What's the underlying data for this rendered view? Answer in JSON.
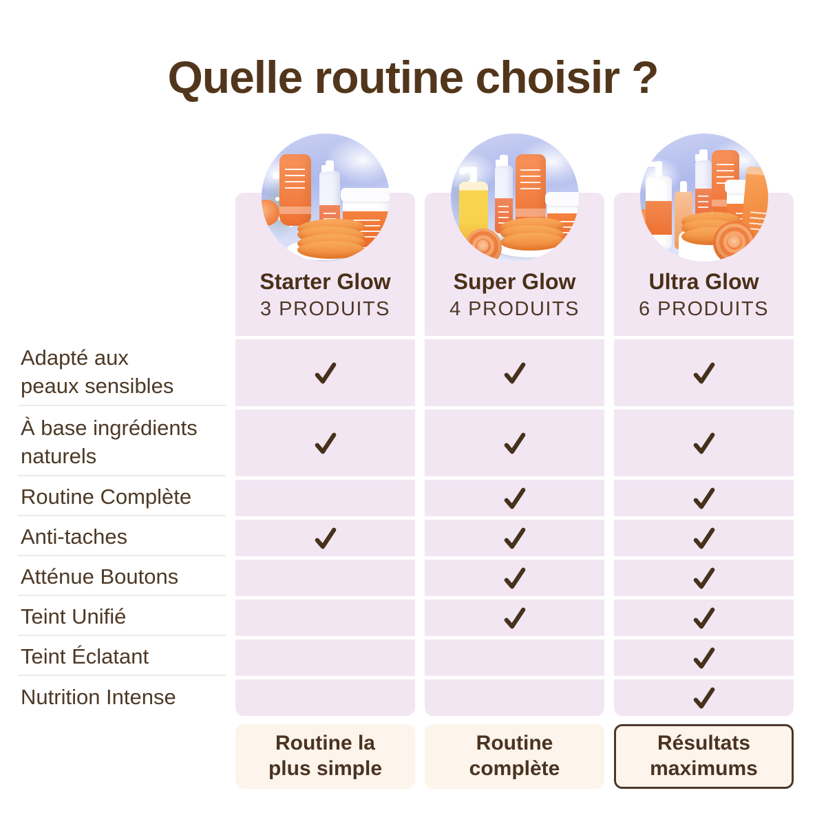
{
  "title": "Quelle routine choisir ?",
  "columns": [
    {
      "name": "Starter Glow",
      "products": "3 PRODUITS",
      "photo": "starter-glow-products-photo",
      "footer": "Routine la\nplus simple",
      "footer_highlighted": false
    },
    {
      "name": "Super Glow",
      "products": "4 PRODUITS",
      "photo": "super-glow-products-photo",
      "footer": "Routine\ncomplète",
      "footer_highlighted": false
    },
    {
      "name": "Ultra Glow",
      "products": "6 PRODUITS",
      "photo": "ultra-glow-products-photo",
      "footer": "Résultats\nmaximums",
      "footer_highlighted": true
    }
  ],
  "features": [
    {
      "label": "Adapté aux\npeaux sensibles",
      "checks": [
        true,
        true,
        true
      ]
    },
    {
      "label": "À base ingrédients\nnaturels",
      "checks": [
        true,
        true,
        true
      ]
    },
    {
      "label": "Routine Complète",
      "checks": [
        false,
        true,
        true
      ]
    },
    {
      "label": "Anti-taches",
      "checks": [
        true,
        true,
        true
      ]
    },
    {
      "label": "Atténue Boutons",
      "checks": [
        false,
        true,
        true
      ]
    },
    {
      "label": "Teint Unifié",
      "checks": [
        false,
        true,
        true
      ]
    },
    {
      "label": "Teint Éclatant",
      "checks": [
        false,
        false,
        true
      ]
    },
    {
      "label": "Nutrition Intense",
      "checks": [
        false,
        false,
        true
      ]
    }
  ],
  "glyphs": {
    "check": "✓"
  },
  "colors": {
    "title_text": "#52361b",
    "heading_text": "#4a3018",
    "label_text": "#4d3926",
    "check": "#46311a",
    "cell_bg": "#f2e6f3",
    "separator": "#eceae8",
    "footer_bg": "#fdf4ec",
    "footer_border": "#4a3829",
    "footer_text": "#4a3322",
    "product_orange": "#ef7c31",
    "photo_sky": "#aeb9ec"
  }
}
